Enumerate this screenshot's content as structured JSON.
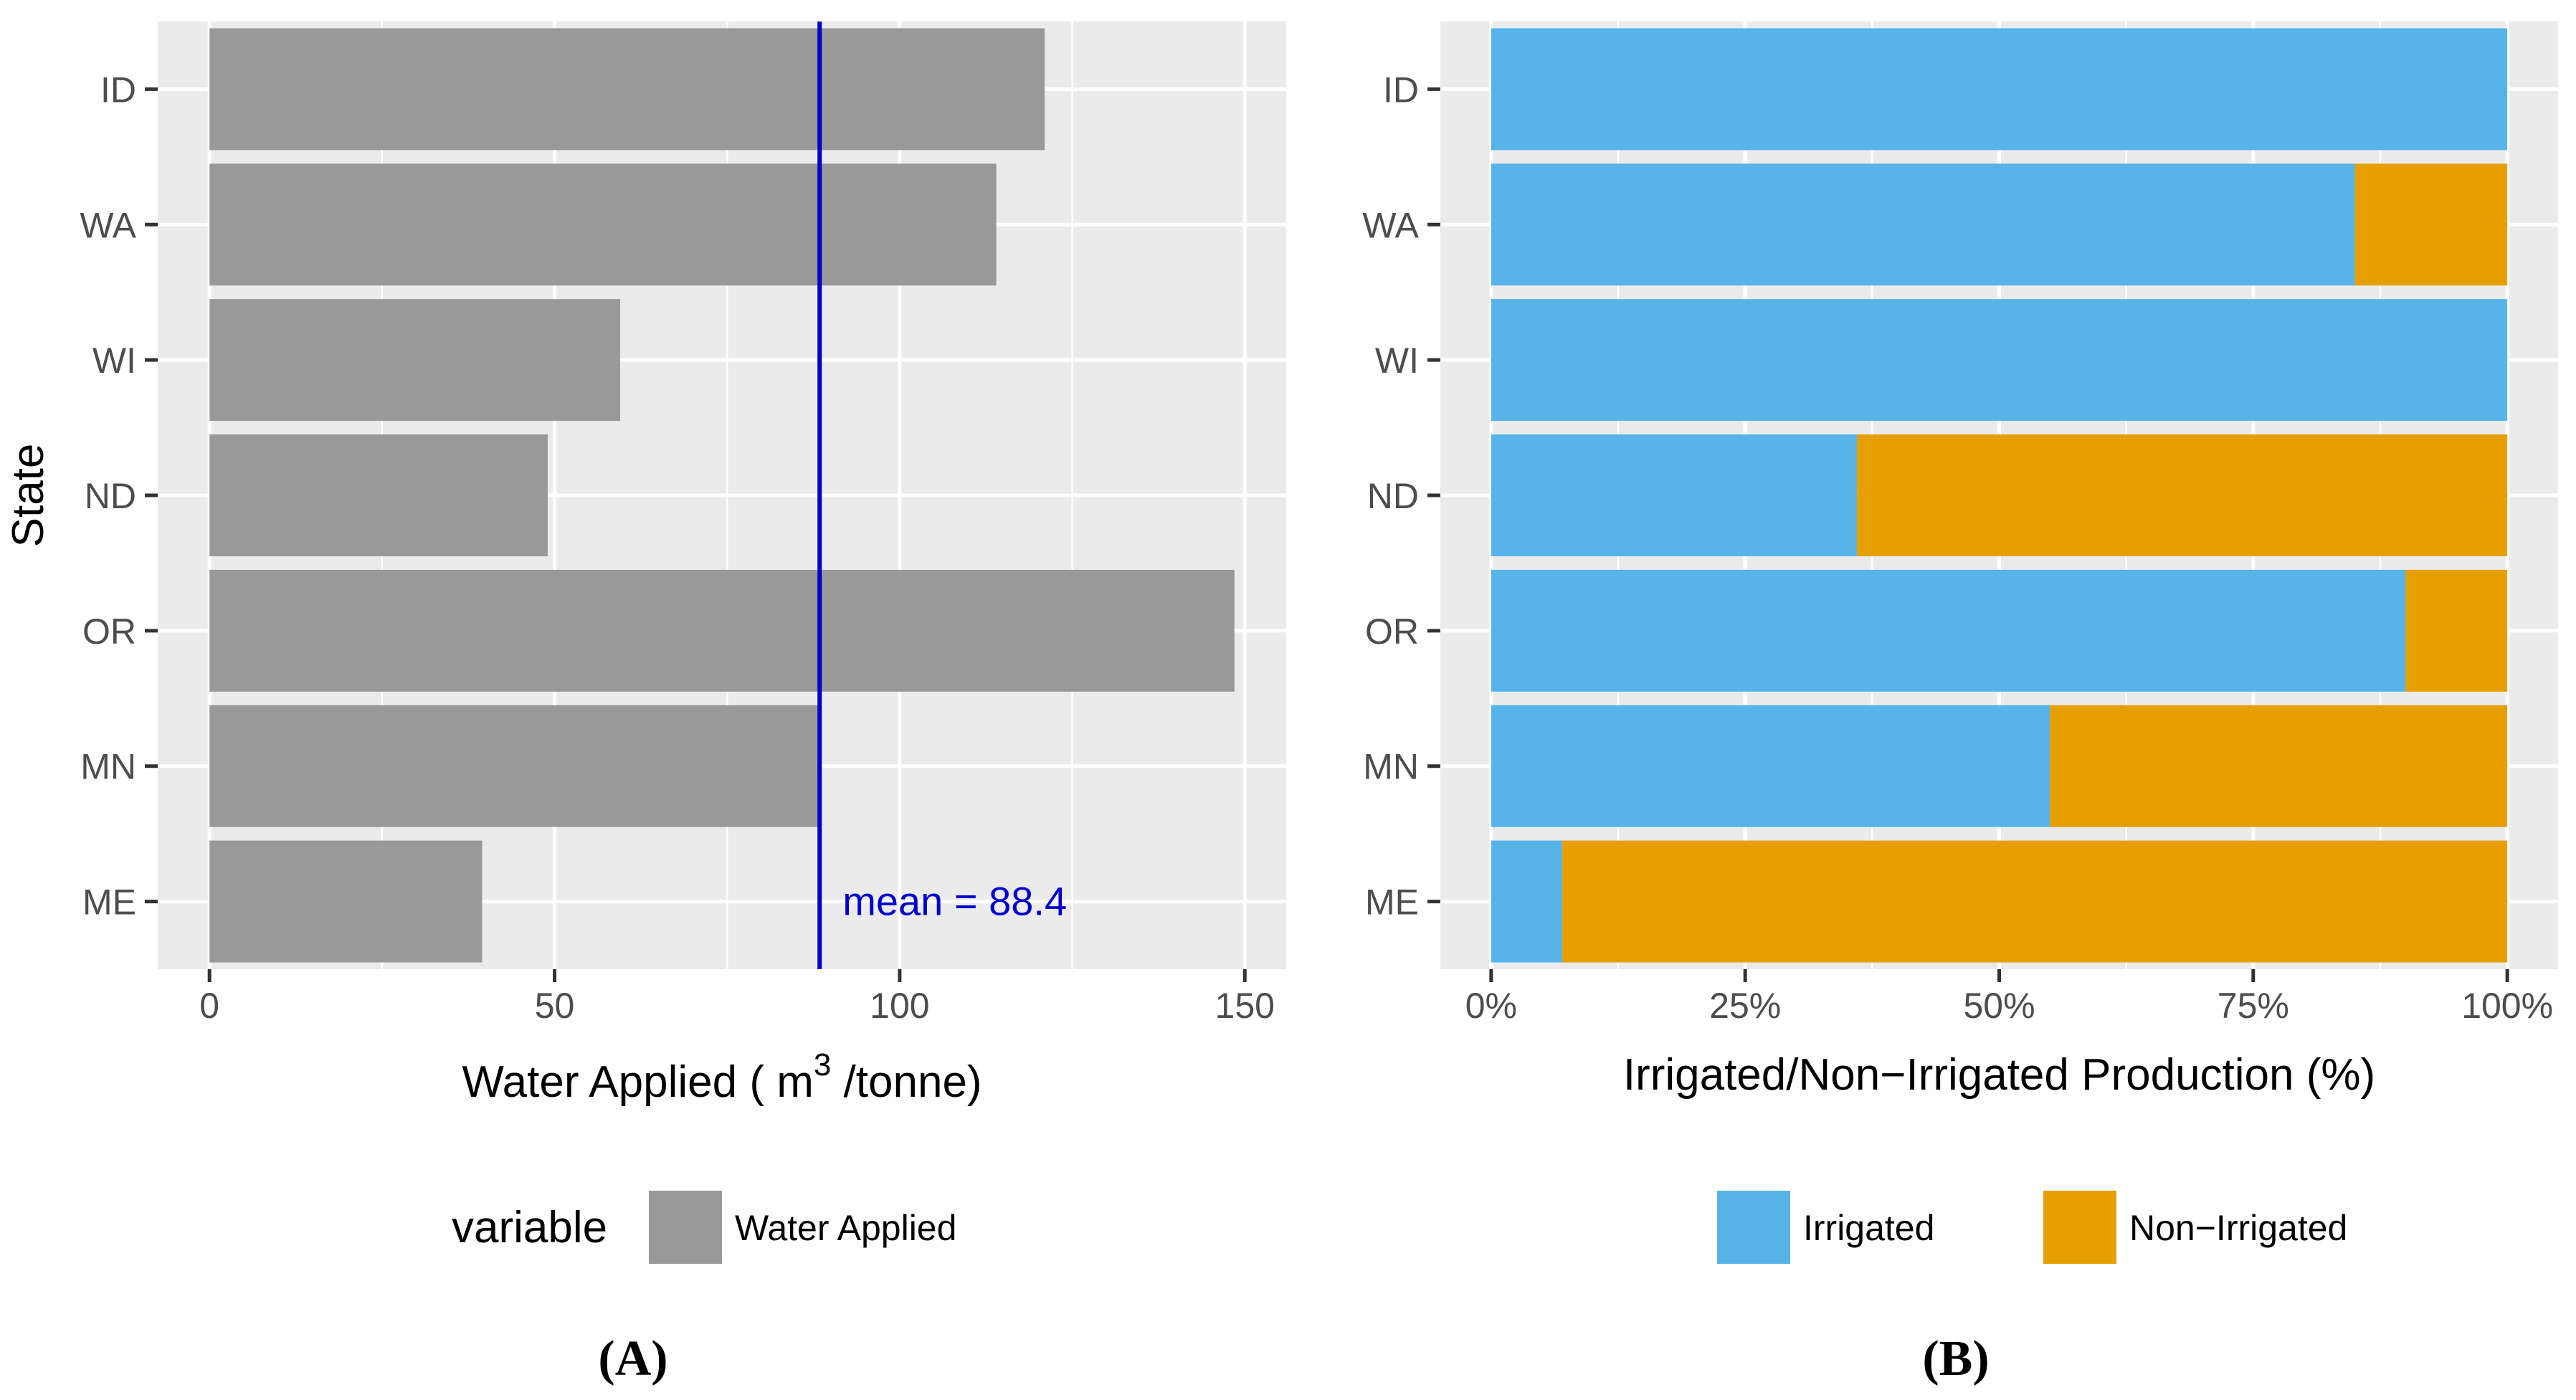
{
  "chart_data": [
    {
      "type": "bar",
      "orientation": "horizontal",
      "panel_tag": "(A)",
      "categories": [
        "ID",
        "WA",
        "WI",
        "ND",
        "OR",
        "MN",
        "ME"
      ],
      "series": [
        {
          "name": "Water Applied",
          "values": [
            121,
            114,
            59.5,
            49,
            148.5,
            88.5,
            39.5
          ]
        }
      ],
      "bar_color": "#999999",
      "ylabel": "State",
      "xlabel_main": "Water Applied ( m",
      "xlabel_sup": "3",
      "xlabel_tail": " /tonne)",
      "xlim": [
        -7.5,
        156
      ],
      "x_ticks": [
        0,
        50,
        100,
        150
      ],
      "x_tick_labels": [
        "0",
        "50",
        "100",
        "150"
      ],
      "x_minor_ticks": [
        25,
        75,
        125
      ],
      "mean_line": {
        "value": 88.4,
        "label": "mean = 88.4",
        "color": "#0000cc"
      },
      "legend": {
        "title": "variable",
        "entries": [
          "Water Applied"
        ],
        "position": "bottom"
      },
      "grid": true
    },
    {
      "type": "bar",
      "orientation": "horizontal",
      "stacked": true,
      "panel_tag": "(B)",
      "categories": [
        "ID",
        "WA",
        "WI",
        "ND",
        "OR",
        "MN",
        "ME"
      ],
      "series": [
        {
          "name": "Irrigated",
          "color": "#56b4e9",
          "values": [
            100,
            85,
            100,
            36,
            90,
            55,
            7
          ]
        },
        {
          "name": "Non−Irrigated",
          "color": "#e69f00",
          "values": [
            0,
            15,
            0,
            64,
            10,
            45,
            93
          ]
        }
      ],
      "xlabel": "Irrigated/Non−Irrigated Production (%)",
      "xlim": [
        -5,
        105
      ],
      "x_ticks": [
        0,
        25,
        50,
        75,
        100
      ],
      "x_tick_labels": [
        "0%",
        "25%",
        "50%",
        "75%",
        "100%"
      ],
      "x_minor_ticks": [
        12.5,
        37.5,
        62.5,
        87.5
      ],
      "legend": {
        "entries": [
          "Irrigated",
          "Non−Irrigated"
        ],
        "position": "bottom"
      },
      "grid": true
    }
  ]
}
